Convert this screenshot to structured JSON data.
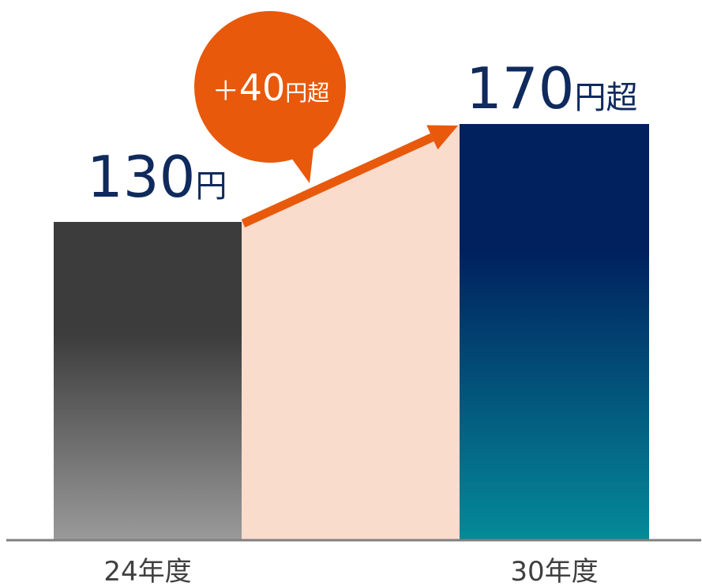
{
  "chart_data": {
    "type": "bar",
    "title": "",
    "xlabel": "",
    "ylabel": "",
    "ylim": [
      0,
      170
    ],
    "grid": false,
    "categories": [
      "24年度",
      "30年度"
    ],
    "values": [
      130,
      170
    ],
    "value_labels": [
      {
        "number": "130",
        "unit": "円"
      },
      {
        "number": "170",
        "unit": "円超"
      }
    ],
    "annotation": {
      "sign": "＋",
      "number": "40",
      "unit": "円超"
    }
  },
  "colors": {
    "bar1_top": "#3c3c3c",
    "bar1_bottom": "#9a9a9a",
    "bar2_top": "#00205e",
    "bar2_bottom": "#058a99",
    "increase_fill": "#fadccd",
    "arrow": "#e8590c",
    "callout": "#e8590c",
    "value_text": "#0f2a5c",
    "baseline": "#808080",
    "category_text": "#404040"
  }
}
